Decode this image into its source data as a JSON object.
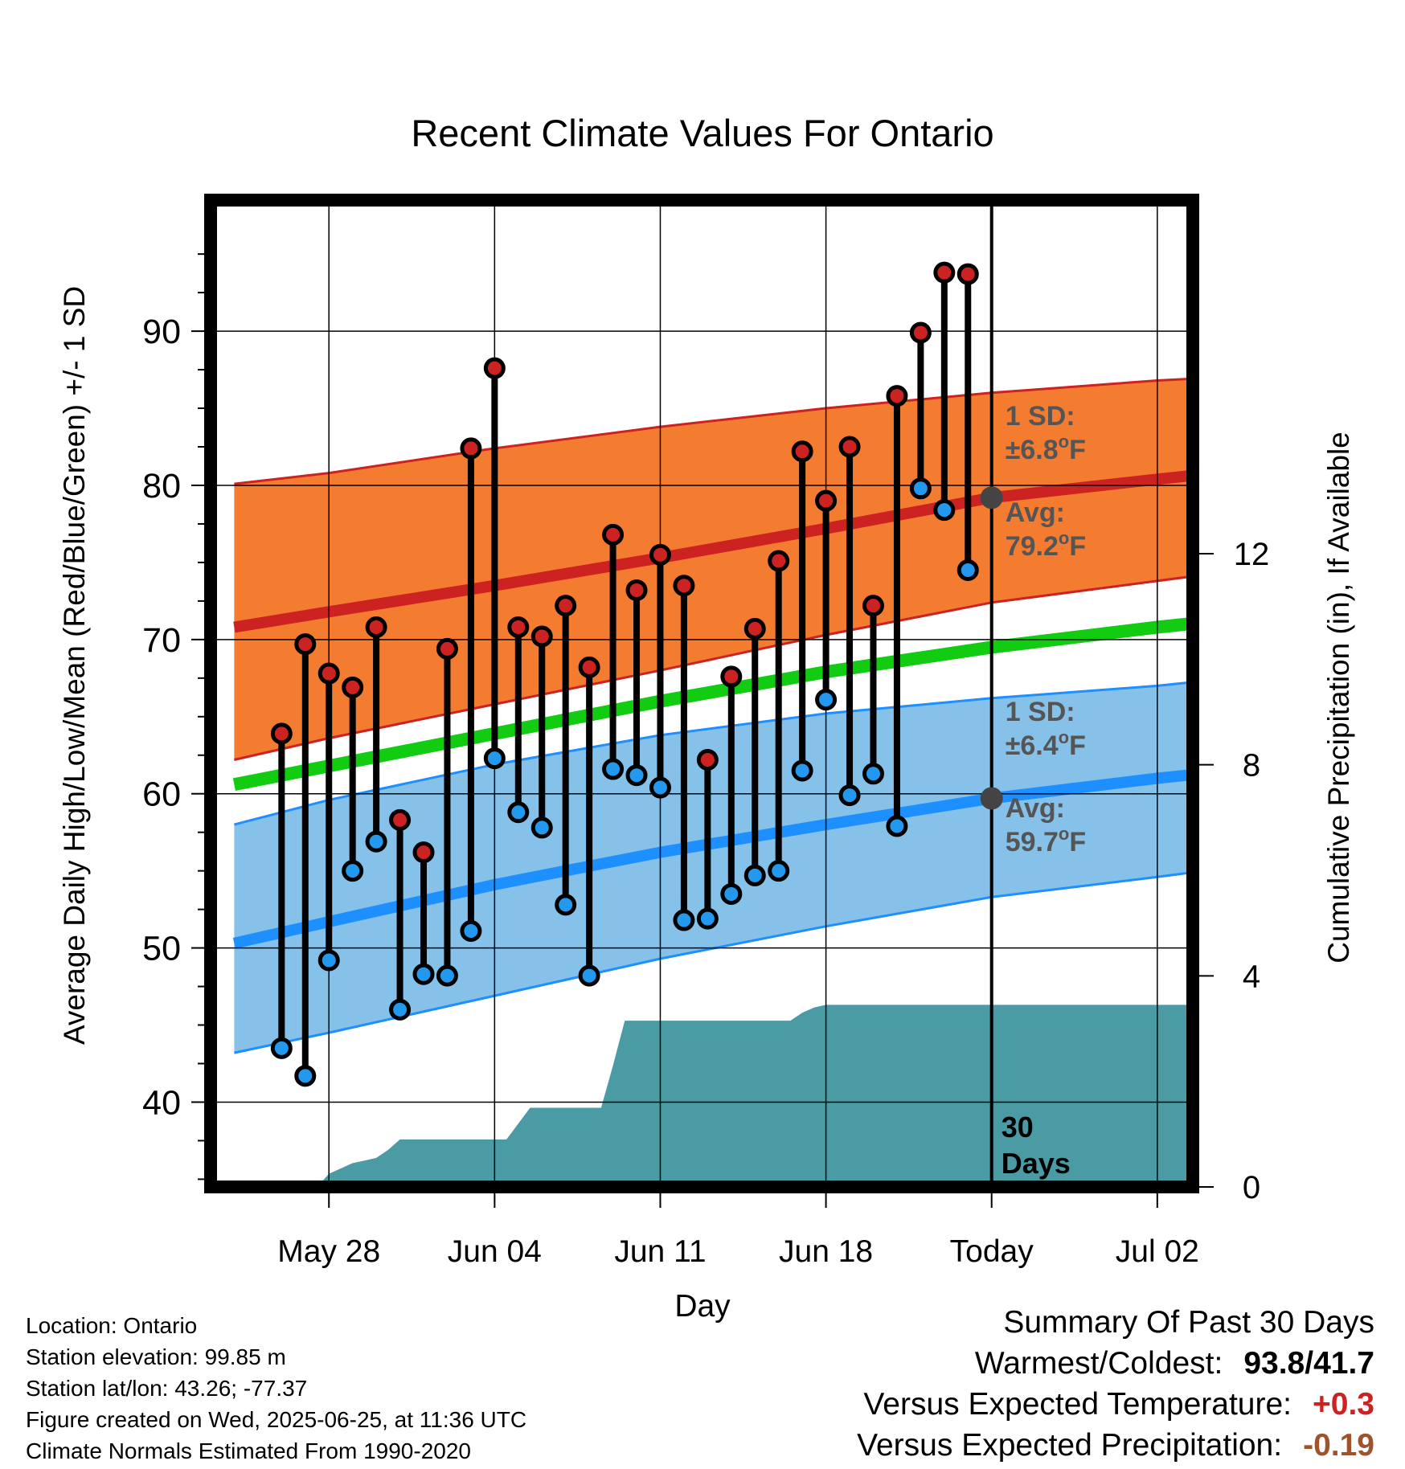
{
  "chart_data": {
    "type": "line",
    "title": "Recent Climate Values For Ontario",
    "xlabel": "Day",
    "ylabel": "Average Daily High/Low/Mean (Red/Blue/Green) +/- 1 SD",
    "y2label": "Cumulative Precipitation (in), If Available",
    "x_range_days": [
      -33,
      8.5
    ],
    "x_ticks": [
      {
        "day": -28,
        "label": "May 28"
      },
      {
        "day": -21,
        "label": "Jun 04"
      },
      {
        "day": -14,
        "label": "Jun 11"
      },
      {
        "day": -7,
        "label": "Jun 18"
      },
      {
        "day": 0,
        "label": "Today"
      },
      {
        "day": 7,
        "label": "Jul 02"
      }
    ],
    "ylim": [
      34.5,
      98.5
    ],
    "y_ticks": [
      40,
      50,
      60,
      70,
      80,
      90
    ],
    "y2lim": [
      0,
      18.7
    ],
    "y2_ticks": [
      0,
      4,
      8,
      12
    ],
    "grid": true,
    "colors": {
      "high_marker": "#cc2222",
      "low_marker": "#2299ee",
      "high_band": "#f47c30",
      "high_band_edge": "#cc2222",
      "low_band": "#85c1e9",
      "low_band_edge": "#1e8fff",
      "mean_line": "#11cc11",
      "precip": "#4a9ba3",
      "avg_dot": "#444444",
      "annotation": "#555555"
    },
    "days": [
      -30,
      -29,
      -28,
      -27,
      -26,
      -25,
      -24,
      -23,
      -22,
      -21,
      -20,
      -19,
      -18,
      -17,
      -16,
      -15,
      -14,
      -13,
      -12,
      -11,
      -10,
      -9,
      -8,
      -7,
      -6,
      -5,
      -4,
      -3,
      -2,
      -1
    ],
    "highs": [
      63.9,
      69.7,
      67.8,
      66.9,
      70.8,
      58.3,
      56.2,
      69.4,
      82.4,
      87.6,
      70.8,
      70.2,
      72.2,
      68.2,
      76.8,
      73.2,
      75.5,
      73.5,
      62.2,
      67.6,
      70.7,
      75.1,
      82.2,
      79.0,
      82.5,
      72.2,
      85.8,
      89.9,
      93.8,
      93.7
    ],
    "lows": [
      43.5,
      41.7,
      49.2,
      55.0,
      56.9,
      46.0,
      48.3,
      48.2,
      51.1,
      62.3,
      58.8,
      57.8,
      52.8,
      48.2,
      61.6,
      61.2,
      60.4,
      51.8,
      51.9,
      53.5,
      54.7,
      55.0,
      61.5,
      66.1,
      59.9,
      61.3,
      57.9,
      79.8,
      78.4,
      74.5
    ],
    "normals": {
      "days": [
        -32,
        -28,
        -21,
        -14,
        -7,
        0,
        7,
        9.5
      ],
      "high_avg": [
        70.8,
        71.8,
        73.5,
        75.3,
        77.2,
        79.2,
        80.4,
        80.8
      ],
      "high_upper": [
        80.1,
        80.8,
        82.4,
        83.8,
        85.0,
        86.0,
        86.8,
        87.0
      ],
      "high_lower": [
        62.2,
        63.6,
        65.8,
        68.0,
        70.3,
        72.4,
        73.8,
        74.3
      ],
      "mean": [
        60.6,
        61.8,
        63.9,
        66.0,
        67.9,
        69.5,
        70.8,
        71.2
      ],
      "low_avg": [
        50.3,
        51.7,
        54.1,
        56.2,
        58.0,
        59.7,
        61.0,
        61.4
      ],
      "low_upper": [
        58.0,
        59.6,
        61.9,
        63.8,
        65.2,
        66.2,
        67.0,
        67.4
      ],
      "low_lower": [
        43.2,
        44.5,
        46.9,
        49.3,
        51.4,
        53.3,
        54.6,
        55.1
      ]
    },
    "precip": {
      "days": [
        -29.5,
        -29,
        -28.5,
        -28,
        -27.5,
        -27,
        -26.5,
        -26,
        -25.5,
        -25,
        -24.5,
        -20.5,
        -20,
        -19.5,
        -18.5,
        -18,
        -17.5,
        -16.5,
        -16,
        -15.5,
        -8.5,
        -8,
        -7.5,
        -7,
        9.5
      ],
      "values": [
        0,
        0,
        0,
        0.25,
        0.35,
        0.45,
        0.5,
        0.55,
        0.7,
        0.9,
        0.9,
        0.9,
        1.2,
        1.5,
        1.5,
        1.5,
        1.5,
        1.5,
        2.3,
        3.15,
        3.15,
        3.3,
        3.4,
        3.45,
        3.45
      ]
    },
    "annotations": [
      {
        "label_1": "1 SD:",
        "label_2": "±6.8",
        "unit": "oF"
      },
      {
        "label_1": "Avg:",
        "label_2": "79.2",
        "unit": "oF"
      },
      {
        "label_1": "1 SD:",
        "label_2": "±6.4",
        "unit": "oF"
      },
      {
        "label_1": "Avg:",
        "label_2": "59.7",
        "unit": "oF"
      }
    ],
    "days_label_1": "30",
    "days_label_2": "Days"
  },
  "meta": {
    "location": "Location: Ontario",
    "elevation": "Station elevation: 99.85 m",
    "latlon": "Station lat/lon: 43.26; -77.37",
    "created": "Figure created on Wed, 2025-06-25, at 11:36 UTC",
    "normals": "Climate Normals Estimated From 1990-2020"
  },
  "summary": {
    "heading": "Summary Of Past 30 Days",
    "warmest_label": "Warmest/Coldest:",
    "warmest_value": "93.8/41.7",
    "temp_label": "Versus Expected Temperature:",
    "temp_value": "+0.3",
    "temp_color": "#cc2222",
    "precip_label": "Versus Expected Precipitation:",
    "precip_value": "-0.19",
    "precip_color": "#a0522d"
  }
}
